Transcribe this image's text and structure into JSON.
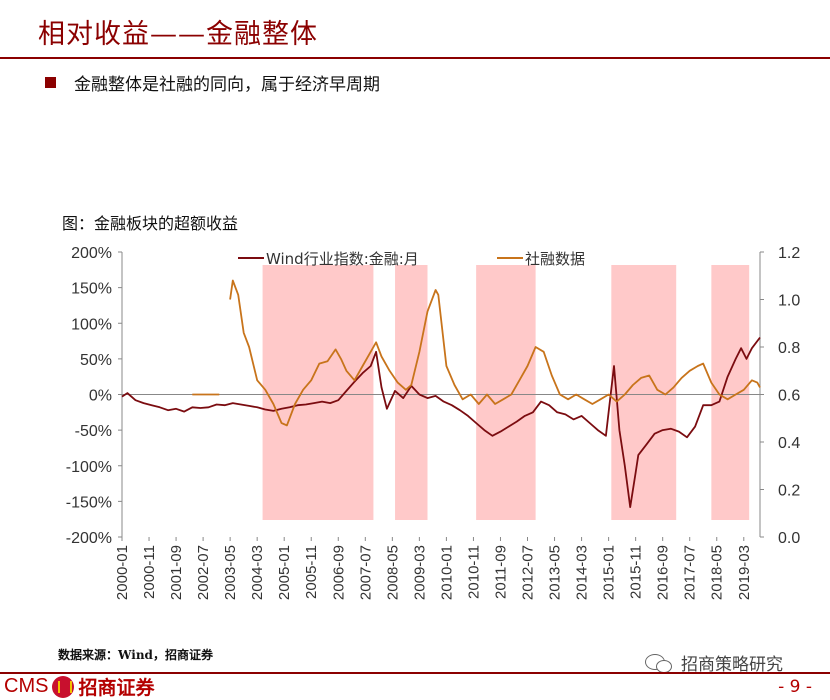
{
  "header": {
    "title": "相对收益——金融整体"
  },
  "bullet": {
    "text": "金融整体是社融的同向，属于经济早周期"
  },
  "figure": {
    "caption": "图：金融板块的超额收益"
  },
  "chart_data": {
    "type": "line",
    "x_ticks": [
      "2000-01",
      "2000-11",
      "2001-09",
      "2002-07",
      "2003-05",
      "2004-03",
      "2005-01",
      "2005-11",
      "2006-09",
      "2007-07",
      "2008-05",
      "2009-03",
      "2010-01",
      "2010-11",
      "2011-09",
      "2012-07",
      "2013-05",
      "2014-03",
      "2015-01",
      "2015-11",
      "2016-09",
      "2017-07",
      "2018-05",
      "2019-03"
    ],
    "y_left": {
      "ticks": [
        "200%",
        "150%",
        "100%",
        "50%",
        "0%",
        "-50%",
        "-100%",
        "-150%",
        "-200%"
      ],
      "range": [
        -200,
        200
      ]
    },
    "y_right": {
      "ticks": [
        "1.2",
        "1.0",
        "0.8",
        "0.6",
        "0.4",
        "0.2",
        "0.0"
      ],
      "range": [
        0,
        1.2
      ]
    },
    "legend": [
      "Wind行业指数:金融:月",
      "社融数据"
    ],
    "legend_position": "top-center",
    "shaded_periods": [
      [
        "2004-05",
        "2007-10"
      ],
      [
        "2008-06",
        "2009-06"
      ],
      [
        "2010-12",
        "2012-10"
      ],
      [
        "2015-02",
        "2017-02"
      ],
      [
        "2018-03",
        "2019-05"
      ]
    ],
    "series": [
      {
        "name": "Wind行业指数:金融:月",
        "axis": "left",
        "color": "#7b0c10",
        "points": [
          [
            "2000-01",
            -3
          ],
          [
            "2000-03",
            2
          ],
          [
            "2000-06",
            -8
          ],
          [
            "2000-09",
            -12
          ],
          [
            "2000-12",
            -15
          ],
          [
            "2001-03",
            -18
          ],
          [
            "2001-06",
            -22
          ],
          [
            "2001-09",
            -20
          ],
          [
            "2001-12",
            -24
          ],
          [
            "2002-03",
            -18
          ],
          [
            "2002-06",
            -19
          ],
          [
            "2002-09",
            -18
          ],
          [
            "2002-12",
            -14
          ],
          [
            "2003-03",
            -15
          ],
          [
            "2003-06",
            -12
          ],
          [
            "2003-09",
            -14
          ],
          [
            "2003-12",
            -16
          ],
          [
            "2004-03",
            -18
          ],
          [
            "2004-06",
            -21
          ],
          [
            "2004-09",
            -23
          ],
          [
            "2004-12",
            -20
          ],
          [
            "2005-03",
            -18
          ],
          [
            "2005-06",
            -15
          ],
          [
            "2005-09",
            -14
          ],
          [
            "2005-12",
            -12
          ],
          [
            "2006-03",
            -10
          ],
          [
            "2006-06",
            -12
          ],
          [
            "2006-09",
            -8
          ],
          [
            "2006-12",
            5
          ],
          [
            "2007-03",
            18
          ],
          [
            "2007-06",
            30
          ],
          [
            "2007-09",
            40
          ],
          [
            "2007-11",
            60
          ],
          [
            "2008-01",
            10
          ],
          [
            "2008-03",
            -20
          ],
          [
            "2008-06",
            5
          ],
          [
            "2008-09",
            -5
          ],
          [
            "2008-12",
            12
          ],
          [
            "2009-03",
            0
          ],
          [
            "2009-06",
            -5
          ],
          [
            "2009-09",
            -2
          ],
          [
            "2009-12",
            -10
          ],
          [
            "2010-03",
            -15
          ],
          [
            "2010-06",
            -22
          ],
          [
            "2010-09",
            -30
          ],
          [
            "2010-12",
            -40
          ],
          [
            "2011-03",
            -50
          ],
          [
            "2011-06",
            -58
          ],
          [
            "2011-09",
            -52
          ],
          [
            "2011-12",
            -45
          ],
          [
            "2012-03",
            -38
          ],
          [
            "2012-06",
            -30
          ],
          [
            "2012-09",
            -25
          ],
          [
            "2012-12",
            -10
          ],
          [
            "2013-03",
            -15
          ],
          [
            "2013-06",
            -25
          ],
          [
            "2013-09",
            -28
          ],
          [
            "2013-12",
            -35
          ],
          [
            "2014-03",
            -30
          ],
          [
            "2014-06",
            -40
          ],
          [
            "2014-09",
            -50
          ],
          [
            "2014-12",
            -58
          ],
          [
            "2015-01",
            -25
          ],
          [
            "2015-03",
            40
          ],
          [
            "2015-05",
            -50
          ],
          [
            "2015-07",
            -100
          ],
          [
            "2015-09",
            -158
          ],
          [
            "2015-11",
            -110
          ],
          [
            "2015-12",
            -85
          ],
          [
            "2016-03",
            -70
          ],
          [
            "2016-06",
            -55
          ],
          [
            "2016-09",
            -50
          ],
          [
            "2016-12",
            -48
          ],
          [
            "2017-03",
            -52
          ],
          [
            "2017-06",
            -60
          ],
          [
            "2017-09",
            -45
          ],
          [
            "2017-12",
            -15
          ],
          [
            "2018-03",
            -15
          ],
          [
            "2018-06",
            -10
          ],
          [
            "2018-09",
            25
          ],
          [
            "2018-12",
            50
          ],
          [
            "2019-02",
            65
          ],
          [
            "2019-04",
            50
          ],
          [
            "2019-06",
            65
          ],
          [
            "2019-09",
            80
          ]
        ]
      },
      {
        "name": "社融数据",
        "axis": "right",
        "color": "#c8741b",
        "points": [
          [
            "2002-03",
            0.6
          ],
          [
            "2003-01",
            0.6
          ],
          null,
          [
            "2003-05",
            1.0
          ],
          [
            "2003-06",
            1.08
          ],
          [
            "2003-08",
            1.02
          ],
          [
            "2003-10",
            0.86
          ],
          [
            "2003-12",
            0.8
          ],
          [
            "2004-03",
            0.66
          ],
          [
            "2004-06",
            0.62
          ],
          [
            "2004-09",
            0.56
          ],
          [
            "2004-12",
            0.48
          ],
          [
            "2005-02",
            0.47
          ],
          [
            "2005-05",
            0.56
          ],
          [
            "2005-08",
            0.62
          ],
          [
            "2005-11",
            0.66
          ],
          [
            "2006-02",
            0.73
          ],
          [
            "2006-05",
            0.74
          ],
          [
            "2006-08",
            0.79
          ],
          [
            "2006-10",
            0.75
          ],
          [
            "2006-12",
            0.7
          ],
          [
            "2007-03",
            0.66
          ],
          [
            "2007-06",
            0.72
          ],
          [
            "2007-09",
            0.78
          ],
          [
            "2007-11",
            0.82
          ],
          [
            "2008-01",
            0.76
          ],
          [
            "2008-04",
            0.7
          ],
          [
            "2008-07",
            0.65
          ],
          [
            "2008-10",
            0.62
          ],
          [
            "2008-12",
            0.64
          ],
          [
            "2009-03",
            0.78
          ],
          [
            "2009-06",
            0.95
          ],
          [
            "2009-09",
            1.04
          ],
          [
            "2009-10",
            1.02
          ],
          [
            "2010-01",
            0.72
          ],
          [
            "2010-04",
            0.64
          ],
          [
            "2010-07",
            0.58
          ],
          [
            "2010-10",
            0.6
          ],
          [
            "2011-01",
            0.56
          ],
          [
            "2011-04",
            0.6
          ],
          [
            "2011-07",
            0.56
          ],
          [
            "2011-10",
            0.58
          ],
          [
            "2012-01",
            0.6
          ],
          [
            "2012-04",
            0.66
          ],
          [
            "2012-07",
            0.72
          ],
          [
            "2012-10",
            0.8
          ],
          [
            "2013-01",
            0.78
          ],
          [
            "2013-04",
            0.68
          ],
          [
            "2013-07",
            0.6
          ],
          [
            "2013-10",
            0.58
          ],
          [
            "2014-01",
            0.6
          ],
          [
            "2014-04",
            0.58
          ],
          [
            "2014-07",
            0.56
          ],
          [
            "2014-10",
            0.58
          ],
          [
            "2015-01",
            0.6
          ],
          [
            "2015-04",
            0.57
          ],
          [
            "2015-07",
            0.6
          ],
          [
            "2015-10",
            0.64
          ],
          [
            "2016-01",
            0.67
          ],
          [
            "2016-04",
            0.68
          ],
          [
            "2016-07",
            0.62
          ],
          [
            "2016-10",
            0.6
          ],
          [
            "2017-01",
            0.63
          ],
          [
            "2017-04",
            0.67
          ],
          [
            "2017-07",
            0.7
          ],
          [
            "2017-10",
            0.72
          ],
          [
            "2017-12",
            0.73
          ],
          [
            "2018-03",
            0.65
          ],
          [
            "2018-06",
            0.6
          ],
          [
            "2018-09",
            0.58
          ],
          [
            "2018-12",
            0.6
          ],
          [
            "2019-03",
            0.62
          ],
          [
            "2019-06",
            0.66
          ],
          [
            "2019-08",
            0.65
          ],
          [
            "2019-09",
            0.63
          ]
        ]
      }
    ]
  },
  "source": {
    "text": "数据来源：Wind，招商证券"
  },
  "footer": {
    "logo_text": "CMS",
    "logo_cn": "招商证券",
    "wechat_name": "招商策略研究",
    "page": "- 9 -"
  }
}
